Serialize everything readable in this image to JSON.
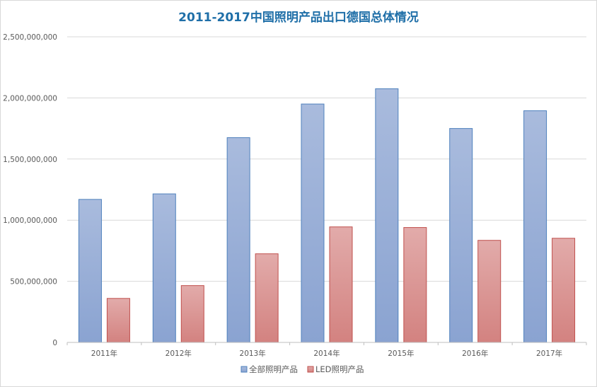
{
  "chart_data": {
    "type": "bar",
    "title": "2011-2017中国照明产品出口德国总体情况",
    "xlabel": "",
    "ylabel": "",
    "categories": [
      "2011年",
      "2012年",
      "2013年",
      "2014年",
      "2015年",
      "2016年",
      "2017年"
    ],
    "series": [
      {
        "name": "全部照明产品",
        "color": "#95ABD5",
        "values": [
          1170000000,
          1215000000,
          1675000000,
          1950000000,
          2075000000,
          1750000000,
          1895000000
        ]
      },
      {
        "name": "LED照明产品",
        "color": "#DA9796",
        "values": [
          360000000,
          465000000,
          725000000,
          945000000,
          940000000,
          835000000,
          852000000
        ]
      }
    ],
    "ylim": [
      0,
      2500000000
    ],
    "yticks": [
      0,
      500000000,
      1000000000,
      1500000000,
      2000000000,
      2500000000
    ],
    "ytick_labels": [
      "0",
      "500,000,000",
      "1,000,000,000",
      "1,500,000,000",
      "2,000,000,000",
      "2,500,000,000"
    ],
    "grid": true,
    "legend_position": "bottom"
  }
}
